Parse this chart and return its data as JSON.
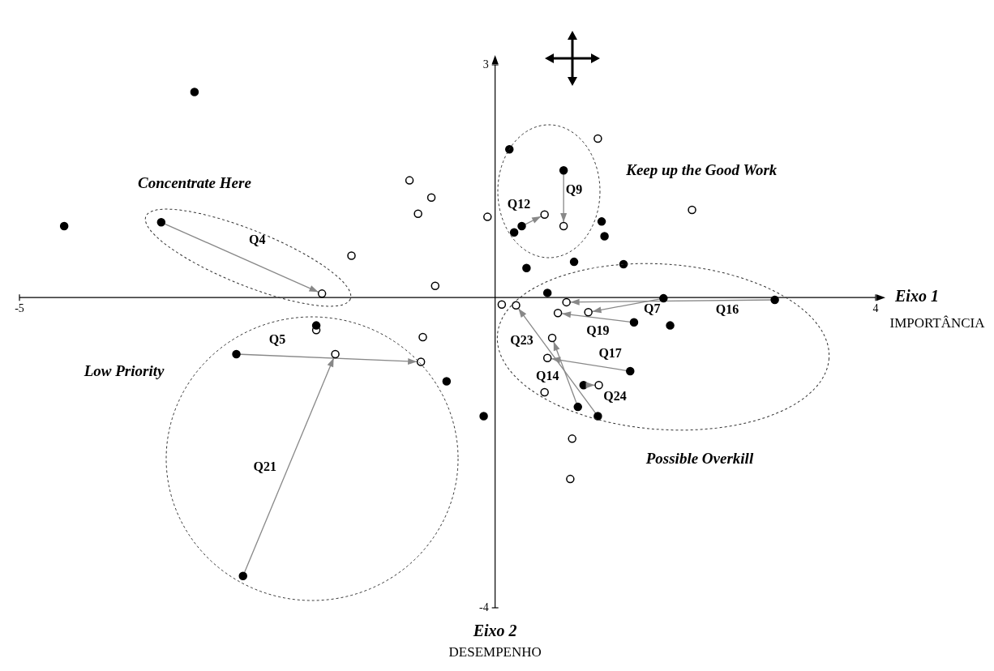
{
  "chart_data": {
    "type": "scatter",
    "xlim": [
      -5,
      4
    ],
    "ylim": [
      -4,
      3
    ],
    "xticks": [
      -5,
      4
    ],
    "yticks": [
      -4,
      3
    ],
    "series": [
      {
        "color": "#000000",
        "x": [
          -3.16,
          -4.53,
          -3.51,
          0.15,
          0.72,
          0.28,
          0.2,
          1.12,
          1.15,
          0.33,
          0.83,
          1.35,
          0.55,
          1.77,
          2.94,
          1.46,
          1.84,
          -1.88,
          -2.72,
          1.42,
          -0.51,
          0.93,
          0.87,
          1.08,
          -0.12,
          -2.65
        ],
        "values": [
          2.65,
          0.92,
          0.97,
          1.91,
          1.64,
          0.92,
          0.84,
          0.98,
          0.79,
          0.38,
          0.46,
          0.43,
          0.06,
          -0.01,
          -0.03,
          -0.32,
          -0.36,
          -0.36,
          -0.73,
          -0.95,
          -1.08,
          -1.13,
          -1.41,
          -1.53,
          -1.53,
          -3.59
        ]
      },
      {
        "color": "#ffffff",
        "x": [
          1.08,
          -0.9,
          -0.67,
          -0.81,
          -0.08,
          0.52,
          0.72,
          2.07,
          -1.51,
          -0.63,
          -1.82,
          0.07,
          0.22,
          0.75,
          0.98,
          0.66,
          -1.88,
          -0.76,
          0.6,
          -1.68,
          -0.78,
          0.55,
          1.09,
          0.52,
          0.81,
          0.79
        ],
        "values": [
          2.05,
          1.51,
          1.29,
          1.08,
          1.04,
          1.07,
          0.92,
          1.13,
          0.54,
          0.15,
          0.05,
          -0.09,
          -0.1,
          -0.06,
          -0.19,
          -0.2,
          -0.42,
          -0.51,
          -0.52,
          -0.73,
          -0.83,
          -0.78,
          -1.13,
          -1.22,
          -1.82,
          -2.34
        ]
      },
      {
        "type": "line",
        "color": "#888888",
        "x": [
          -3.51,
          -1.82
        ],
        "values": [
          0.97,
          0.05
        ]
      },
      {
        "type": "line",
        "color": "#888888",
        "x": [
          0.28,
          0.52
        ],
        "values": [
          0.92,
          1.07
        ]
      },
      {
        "type": "line",
        "color": "#888888",
        "x": [
          0.72,
          0.72
        ],
        "values": [
          1.64,
          0.92
        ]
      },
      {
        "type": "line",
        "color": "#888888",
        "x": [
          1.77,
          0.98
        ],
        "values": [
          -0.01,
          -0.19
        ]
      },
      {
        "type": "line",
        "color": "#888888",
        "x": [
          2.94,
          0.75
        ],
        "values": [
          -0.03,
          -0.06
        ]
      },
      {
        "type": "line",
        "color": "#888888",
        "x": [
          1.46,
          0.66
        ],
        "values": [
          -0.32,
          -0.2
        ]
      },
      {
        "type": "line",
        "color": "#888888",
        "x": [
          1.08,
          0.22
        ],
        "values": [
          -1.53,
          -0.1
        ]
      },
      {
        "type": "line",
        "color": "#888888",
        "x": [
          0.87,
          0.6
        ],
        "values": [
          -1.41,
          -0.52
        ]
      },
      {
        "type": "line",
        "color": "#888888",
        "x": [
          1.42,
          0.55
        ],
        "values": [
          -0.95,
          -0.78
        ]
      },
      {
        "type": "line",
        "color": "#888888",
        "x": [
          0.93,
          1.09
        ],
        "values": [
          -1.13,
          -1.13
        ]
      },
      {
        "type": "line",
        "color": "#888888",
        "x": [
          -2.72,
          -0.78
        ],
        "values": [
          -0.73,
          -0.83
        ]
      },
      {
        "type": "line",
        "color": "#888888",
        "x": [
          -2.65,
          -1.68
        ],
        "values": [
          -3.59,
          -0.73
        ]
      }
    ],
    "annotations": [
      "Q4",
      "Q12",
      "Q9",
      "Q7",
      "Q16",
      "Q19",
      "Q23",
      "Q14",
      "Q17",
      "Q24",
      "Q5",
      "Q21",
      "Concentrate Here",
      "Keep up the Good Work",
      "Low Priority",
      "Possible Overkill",
      "Eixo 1",
      "IMPORTÂNCIA",
      "Eixo 2",
      "DESEMPENHO"
    ]
  }
}
